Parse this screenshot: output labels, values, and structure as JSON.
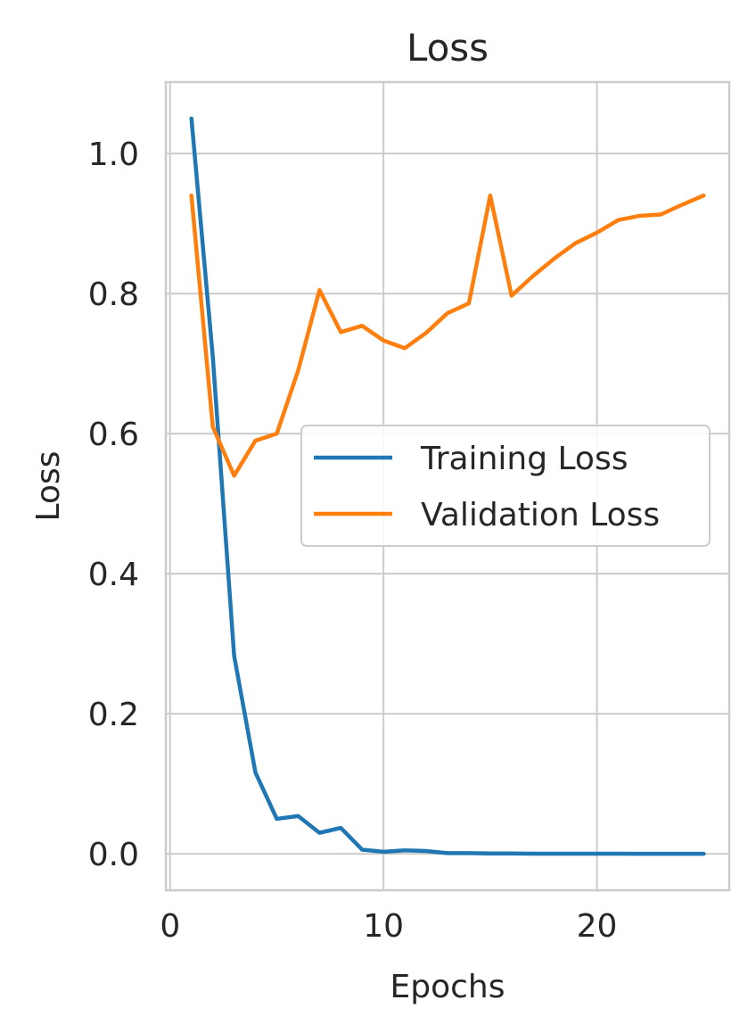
{
  "chart_data": {
    "type": "line",
    "title": "Loss",
    "xlabel": "Epochs",
    "ylabel": "Loss",
    "xlim": [
      -0.2,
      26.2
    ],
    "ylim": [
      -0.052,
      1.102
    ],
    "xticks": [
      0,
      10,
      20
    ],
    "xtick_labels": [
      "0",
      "10",
      "20"
    ],
    "yticks": [
      0.0,
      0.2,
      0.4,
      0.6,
      0.8,
      1.0
    ],
    "ytick_labels": [
      "0.0",
      "0.2",
      "0.4",
      "0.6",
      "0.8",
      "1.0"
    ],
    "grid": true,
    "legend_position": "center-right",
    "x": [
      1,
      2,
      3,
      4,
      5,
      6,
      7,
      8,
      9,
      10,
      11,
      12,
      13,
      14,
      15,
      16,
      17,
      18,
      19,
      20,
      21,
      22,
      23,
      24,
      25
    ],
    "series": [
      {
        "name": "Training Loss",
        "color": "#1f77b4",
        "values": [
          1.05,
          0.71,
          0.283,
          0.116,
          0.05,
          0.054,
          0.03,
          0.037,
          0.006,
          0.003,
          0.005,
          0.004,
          0.001,
          0.001,
          0.0005,
          0.0005,
          0.0003,
          0.0003,
          0.0002,
          0.0002,
          0.0002,
          0.0001,
          0.0001,
          0.0001,
          0.0001
        ]
      },
      {
        "name": "Validation Loss",
        "color": "#ff7f0e",
        "values": [
          0.94,
          0.61,
          0.54,
          0.59,
          0.6,
          0.69,
          0.805,
          0.745,
          0.754,
          0.733,
          0.722,
          0.744,
          0.772,
          0.786,
          0.94,
          0.797,
          0.825,
          0.85,
          0.872,
          0.887,
          0.905,
          0.911,
          0.913,
          0.927,
          0.94
        ]
      }
    ]
  }
}
